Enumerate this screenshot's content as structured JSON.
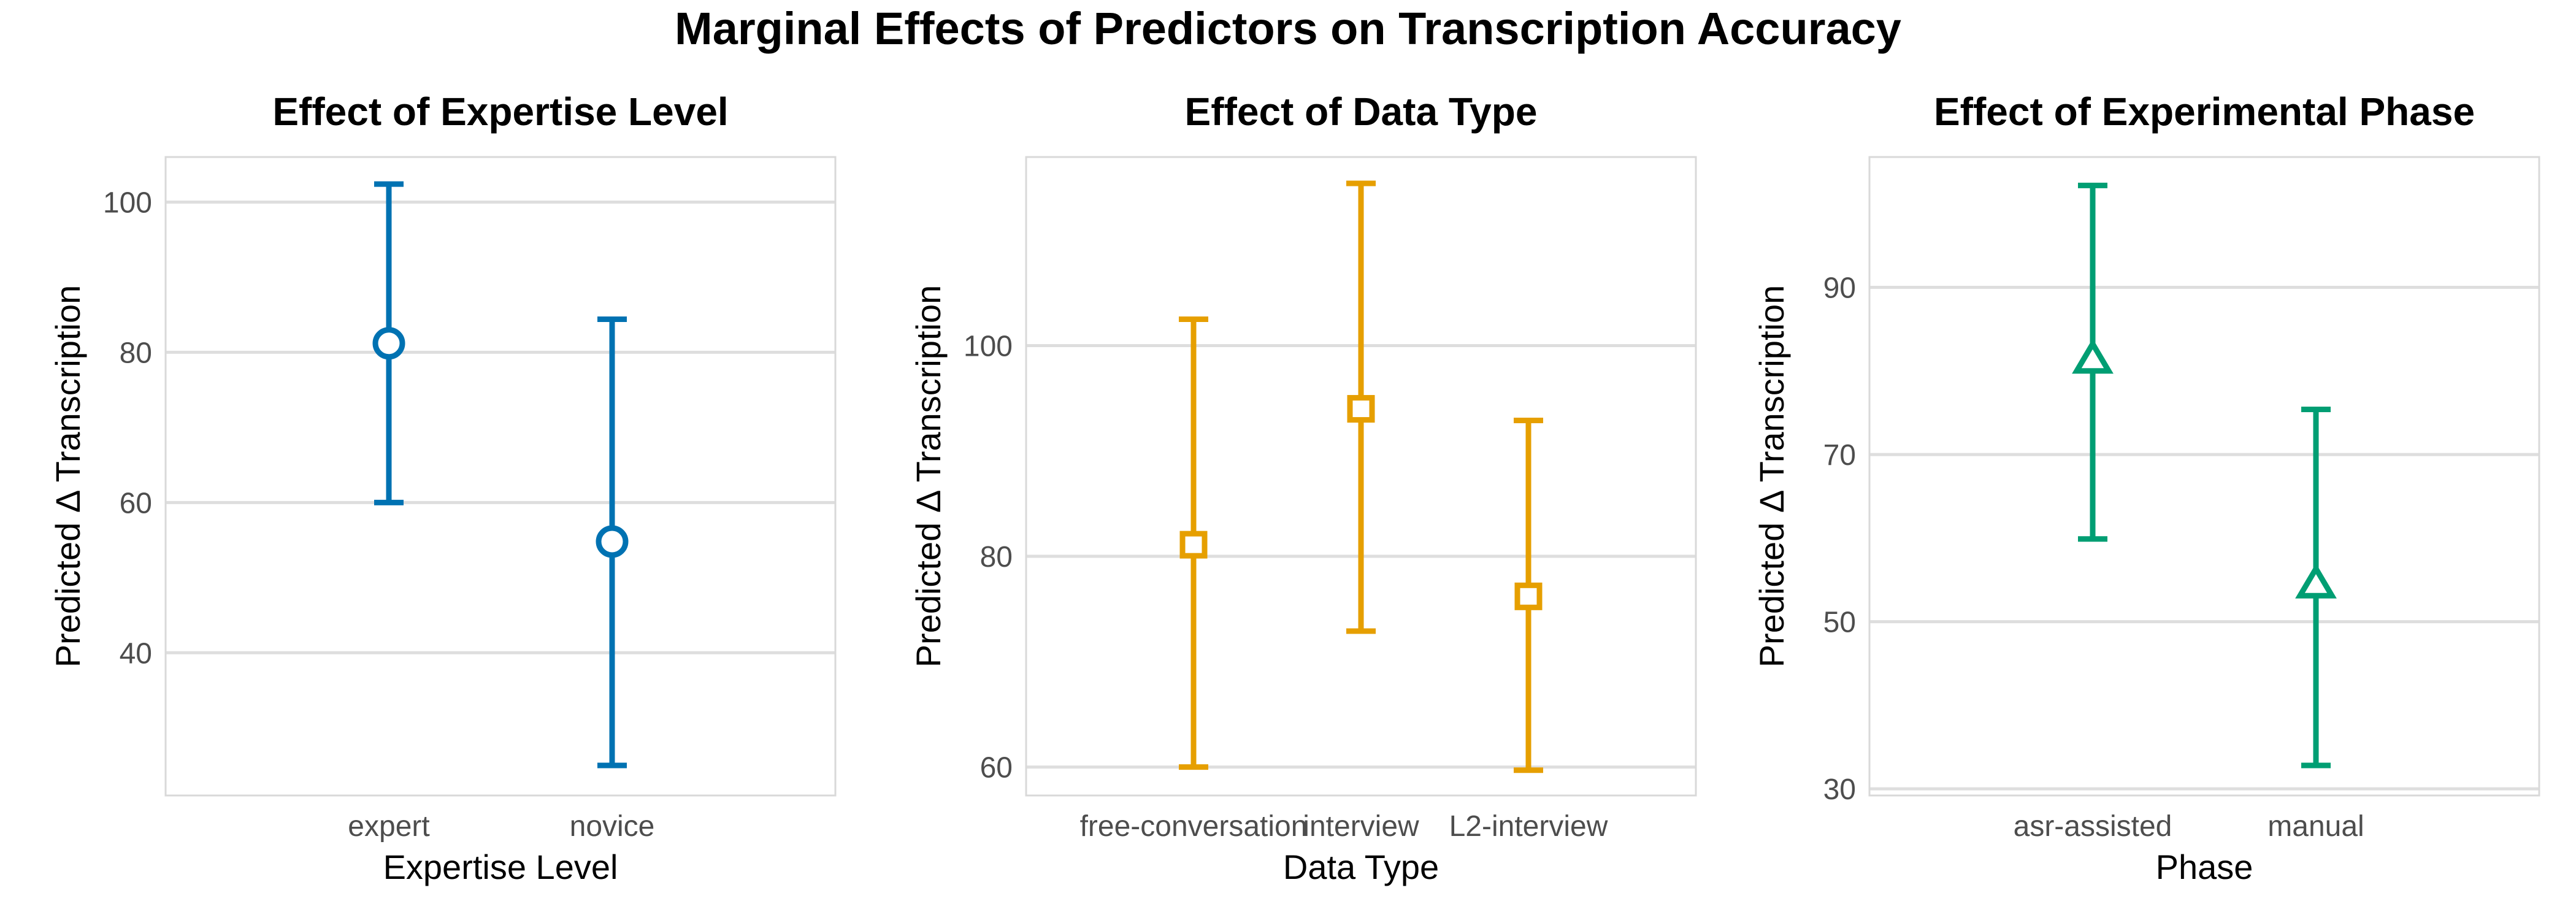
{
  "figure": {
    "title": "Marginal Effects of Predictors on Transcription Accuracy"
  },
  "chart_data": [
    {
      "type": "scatter",
      "title": "Effect of Expertise Level",
      "xlabel": "Expertise Level",
      "ylabel": "Predicted Δ Transcription",
      "categories": [
        "expert",
        "novice"
      ],
      "estimate": [
        81.2,
        54.8
      ],
      "lower": [
        60.0,
        25.0
      ],
      "upper": [
        102.4,
        84.4
      ],
      "ylim": [
        21.0,
        106.0
      ],
      "yticks": [
        40,
        60,
        80,
        100
      ],
      "color": "#0072B2",
      "marker": "circle",
      "grid": true
    },
    {
      "type": "scatter",
      "title": "Effect of Data Type",
      "xlabel": "Data Type",
      "ylabel": "Predicted Δ Transcription",
      "categories": [
        "free-conversation",
        "interview",
        "L2-interview"
      ],
      "estimate": [
        81.1,
        94.0,
        76.2
      ],
      "lower": [
        60.0,
        72.9,
        59.7
      ],
      "upper": [
        102.5,
        115.4,
        92.9
      ],
      "ylim": [
        57.3,
        117.9
      ],
      "yticks": [
        60,
        80,
        100
      ],
      "color": "#E69F00",
      "marker": "square",
      "grid": true
    },
    {
      "type": "scatter",
      "title": "Effect of Experimental Phase",
      "xlabel": "Phase",
      "ylabel": "Predicted Δ Transcription",
      "categories": [
        "asr-assisted",
        "manual"
      ],
      "estimate": [
        81.3,
        54.4
      ],
      "lower": [
        59.9,
        32.8
      ],
      "upper": [
        102.2,
        75.4
      ],
      "ylim": [
        29.2,
        105.6
      ],
      "yticks": [
        30,
        50,
        70,
        90
      ],
      "color": "#009E73",
      "marker": "triangle",
      "grid": true
    }
  ]
}
